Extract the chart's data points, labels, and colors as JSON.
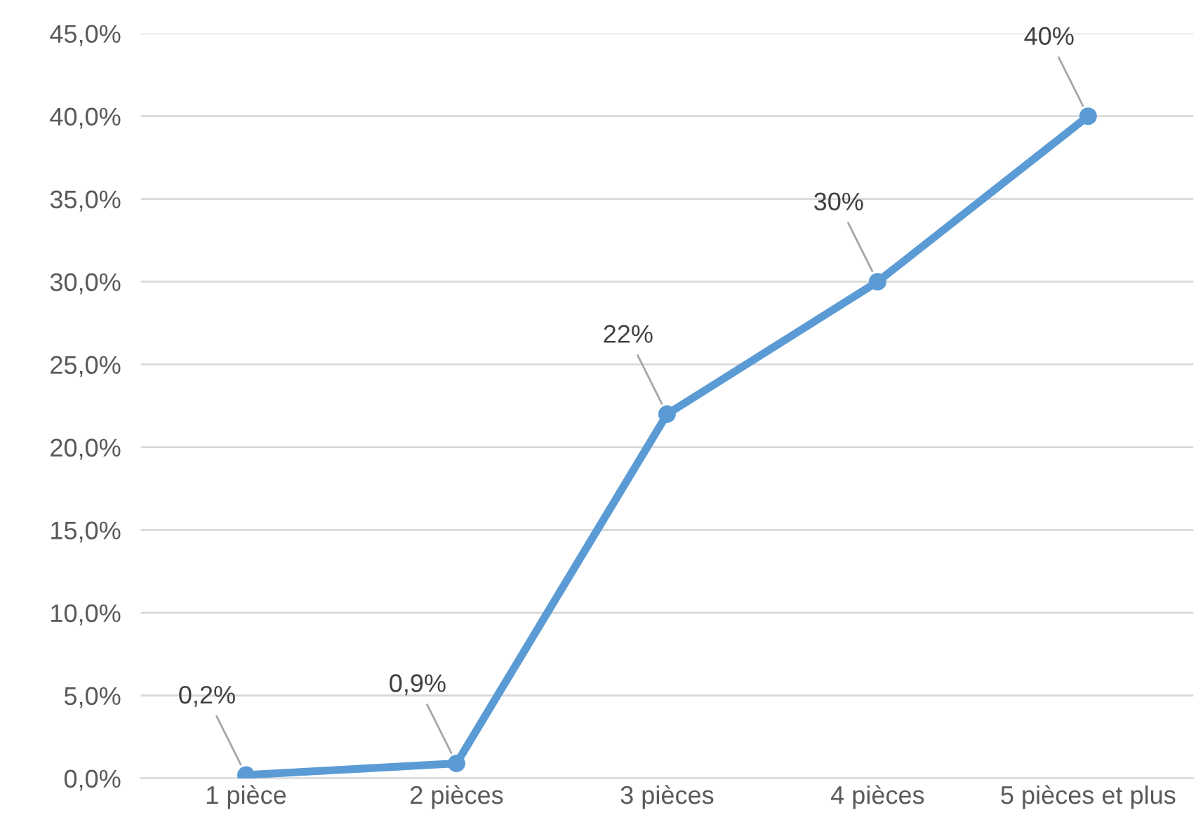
{
  "chart_data": {
    "type": "line",
    "categories": [
      "1 pièce",
      "2 pièces",
      "3 pièces",
      "4 pièces",
      "5 pièces et plus"
    ],
    "values": [
      0.2,
      0.9,
      22,
      30,
      40
    ],
    "value_labels": [
      "0,2%",
      "0,9%",
      "22%",
      "30%",
      "40%"
    ],
    "color": "#5b9bd5",
    "marker": "circle",
    "line_style": "solid",
    "ylim": [
      0,
      45
    ],
    "yticks": [
      {
        "value": 0,
        "label": "0,0%"
      },
      {
        "value": 5,
        "label": "5,0%"
      },
      {
        "value": 10,
        "label": "10,0%"
      },
      {
        "value": 15,
        "label": "15,0%"
      },
      {
        "value": 20,
        "label": "20,0%"
      },
      {
        "value": 25,
        "label": "25,0%"
      },
      {
        "value": 30,
        "label": "30,0%"
      },
      {
        "value": 35,
        "label": "35,0%"
      },
      {
        "value": 40,
        "label": "40,0%"
      },
      {
        "value": 45,
        "label": "45,0%"
      }
    ],
    "grid": "y",
    "legend": false
  }
}
